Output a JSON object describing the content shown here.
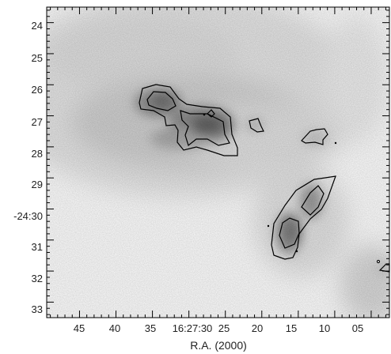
{
  "chart_data": {
    "type": "heatmap",
    "title": "",
    "xlabel": "R.A. (2000)",
    "ylabel": "",
    "x_ticks": [
      "45",
      "40",
      "35",
      "16:27:30",
      "25",
      "20",
      "15",
      "10",
      "05"
    ],
    "y_ticks": [
      "24",
      "25",
      "26",
      "27",
      "28",
      "29",
      "-24:30",
      "31",
      "32",
      "33"
    ],
    "x_tick_seconds": [
      45,
      40,
      35,
      30,
      25,
      20,
      15,
      10,
      5
    ],
    "y_tick_arcmin": [
      24,
      25,
      26,
      27,
      28,
      29,
      30,
      31,
      32,
      33
    ],
    "xlim_seconds": [
      49.5,
      2.5
    ],
    "ylim_arcmin": [
      33.5,
      23.5
    ],
    "colormap": "grayscale (white = low, dark gray = high)",
    "contour_color": "#000000",
    "emission_peaks": [
      {
        "ra_s": 27.5,
        "dec_arcmin": 27.1,
        "level": "high"
      },
      {
        "ra_s": 33.5,
        "dec_arcmin": 26.5,
        "level": "high"
      },
      {
        "ra_s": 14.8,
        "dec_arcmin": 30.9,
        "level": "medium"
      },
      {
        "ra_s": 12.5,
        "dec_arcmin": 29.5,
        "level": "medium"
      },
      {
        "ra_s": 4.0,
        "dec_arcmin": 33.0,
        "level": "low"
      }
    ]
  }
}
